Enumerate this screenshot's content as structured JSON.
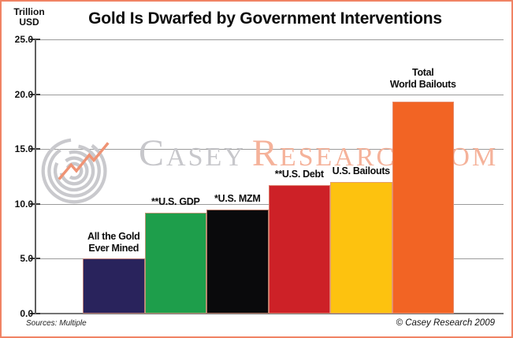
{
  "watermark": {
    "word1": "Casey",
    "word2": "Research.com"
  },
  "footer": {
    "sources": "Sources: Multiple",
    "copyright": "© Casey Research 2009"
  },
  "colors": {
    "frame_border": "#f08364",
    "grid": "#9b9b9b",
    "axis": "#5f5f5f",
    "watermark_gray": "#c7c7cb",
    "watermark_accent": "#f5b29a",
    "bar_outline": "#e09580"
  },
  "chart_data": {
    "type": "bar",
    "title": "Gold Is Dwarfed by Government Interventions",
    "ylabel": "Trillion USD",
    "ylabel_lines": [
      "Trillion",
      "USD"
    ],
    "xlabel": "",
    "ylim": [
      0,
      25
    ],
    "ytick_values": [
      0,
      5,
      10,
      15,
      20,
      25
    ],
    "ytick_labels": [
      "0.0",
      "5.0",
      "10.0",
      "15.0",
      "20.0",
      "25.0"
    ],
    "grid": true,
    "legend": false,
    "categories": [
      "All the Gold Ever Mined",
      "**U.S. GDP",
      "*U.S. MZM",
      "**U.S. Debt",
      "U.S. Bailouts",
      "Total World Bailouts"
    ],
    "bar_label_lines": [
      [
        "All the Gold",
        "Ever Mined"
      ],
      [
        "**U.S. GDP"
      ],
      [
        "*U.S. MZM"
      ],
      [
        "**U.S. Debt"
      ],
      [
        "U.S. Bailouts"
      ],
      [
        "Total",
        "World Bailouts"
      ]
    ],
    "values": [
      5.0,
      9.2,
      9.5,
      11.7,
      12.0,
      19.3
    ],
    "bar_colors": [
      "#29235c",
      "#1e9e4b",
      "#0a0a0c",
      "#cd2127",
      "#fdc20f",
      "#f26424"
    ]
  }
}
